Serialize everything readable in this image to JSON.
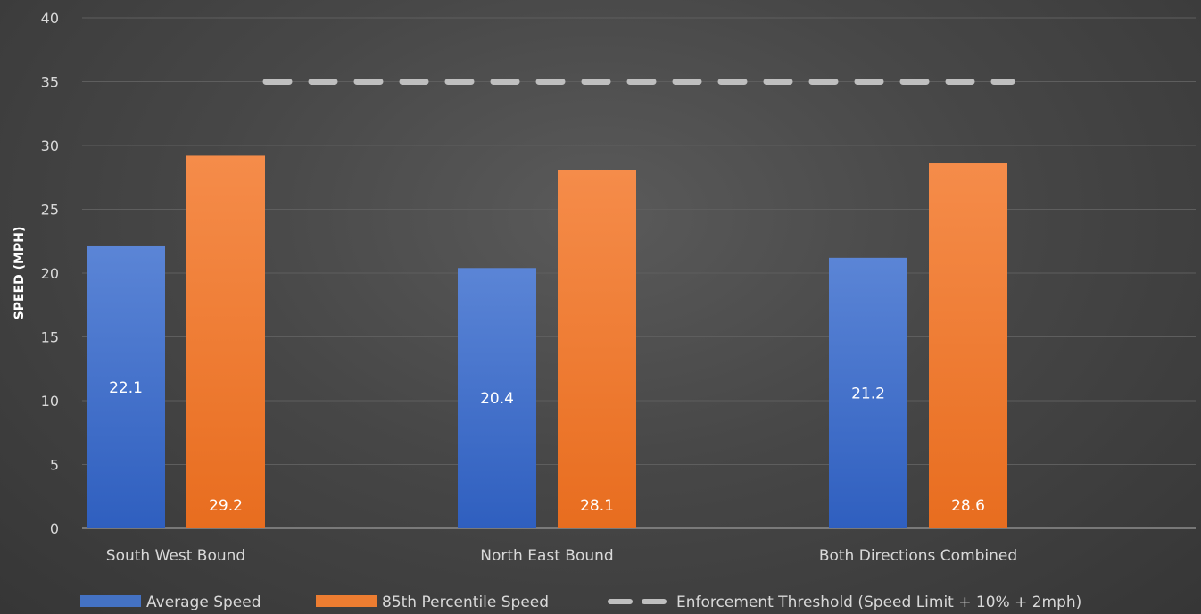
{
  "chart_data": {
    "type": "bar",
    "title": "",
    "xlabel": "",
    "ylabel": "SPEED (MPH)",
    "ylim": [
      0,
      40
    ],
    "yticks": [
      0,
      5,
      10,
      15,
      20,
      25,
      30,
      35,
      40
    ],
    "grid": true,
    "legend_position": "bottom",
    "categories": [
      "South West Bound",
      "North East Bound",
      "Both Directions Combined"
    ],
    "series": [
      {
        "name": "Average Speed",
        "kind": "bar",
        "color": "#4472c4",
        "values": [
          22.1,
          20.4,
          21.2
        ],
        "labels": [
          "22.1",
          "20.4",
          "21.2"
        ]
      },
      {
        "name": "85th Percentile Speed",
        "kind": "bar",
        "color": "#ed7d31",
        "values": [
          29.2,
          28.1,
          28.6
        ],
        "labels": [
          "29.2",
          "28.1",
          "28.6"
        ]
      },
      {
        "name": "Enforcement Threshold (Speed Limit + 10% + 2mph)",
        "kind": "dashed-line",
        "color": "#bfbfbf",
        "values": [
          35,
          35,
          35
        ]
      }
    ]
  }
}
